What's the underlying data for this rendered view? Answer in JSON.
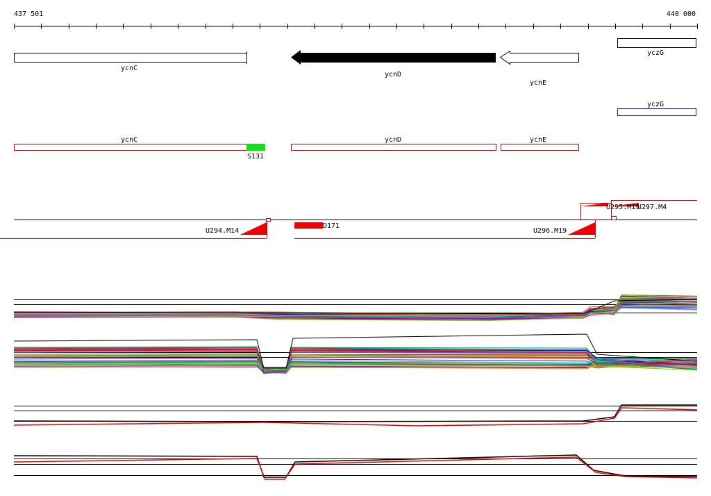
{
  "ruler": {
    "start": "437 501",
    "end": "440 000"
  },
  "annotation_track": {
    "genes": [
      {
        "label": "ycnC"
      },
      {
        "label": "ycnD"
      },
      {
        "label": "ycnE"
      },
      {
        "label": "yczG"
      }
    ]
  },
  "second_track": {
    "genes": [
      {
        "label": "yczG"
      }
    ]
  },
  "feature_track": {
    "genes": [
      {
        "label": "ycnC"
      },
      {
        "label": "ycnD"
      },
      {
        "label": "ycnE"
      }
    ],
    "site": "S131"
  },
  "transcript_track": {
    "labels": [
      "U294.M14",
      "D171",
      "U296.M19",
      "U295.M19",
      "U297.M4"
    ]
  }
}
